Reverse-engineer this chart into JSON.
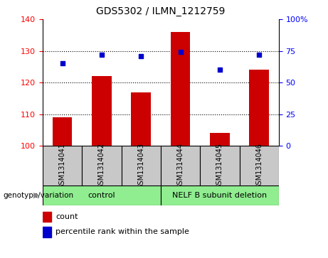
{
  "title": "GDS5302 / ILMN_1212759",
  "samples": [
    "GSM1314041",
    "GSM1314042",
    "GSM1314043",
    "GSM1314044",
    "GSM1314045",
    "GSM1314046"
  ],
  "counts": [
    109,
    122,
    117,
    136,
    104,
    124
  ],
  "percentiles": [
    65,
    72,
    71,
    74,
    60,
    72
  ],
  "ylim_left": [
    100,
    140
  ],
  "ylim_right": [
    0,
    100
  ],
  "yticks_left": [
    100,
    110,
    120,
    130,
    140
  ],
  "yticks_right": [
    0,
    25,
    50,
    75,
    100
  ],
  "ytick_labels_right": [
    "0",
    "25",
    "50",
    "75",
    "100%"
  ],
  "bar_color": "#cc0000",
  "scatter_color": "#0000cc",
  "bar_width": 0.5,
  "group_data": [
    {
      "label": "control",
      "start": 0,
      "end": 2,
      "color": "#90ee90"
    },
    {
      "label": "NELF B subunit deletion",
      "start": 3,
      "end": 5,
      "color": "#90ee90"
    }
  ],
  "genotype_label": "genotype/variation",
  "legend_count_label": "count",
  "legend_percentile_label": "percentile rank within the sample",
  "sample_box_color": "#c8c8c8",
  "title_fontsize": 10,
  "axis_fontsize": 8,
  "label_fontsize": 7,
  "group_fontsize": 8
}
